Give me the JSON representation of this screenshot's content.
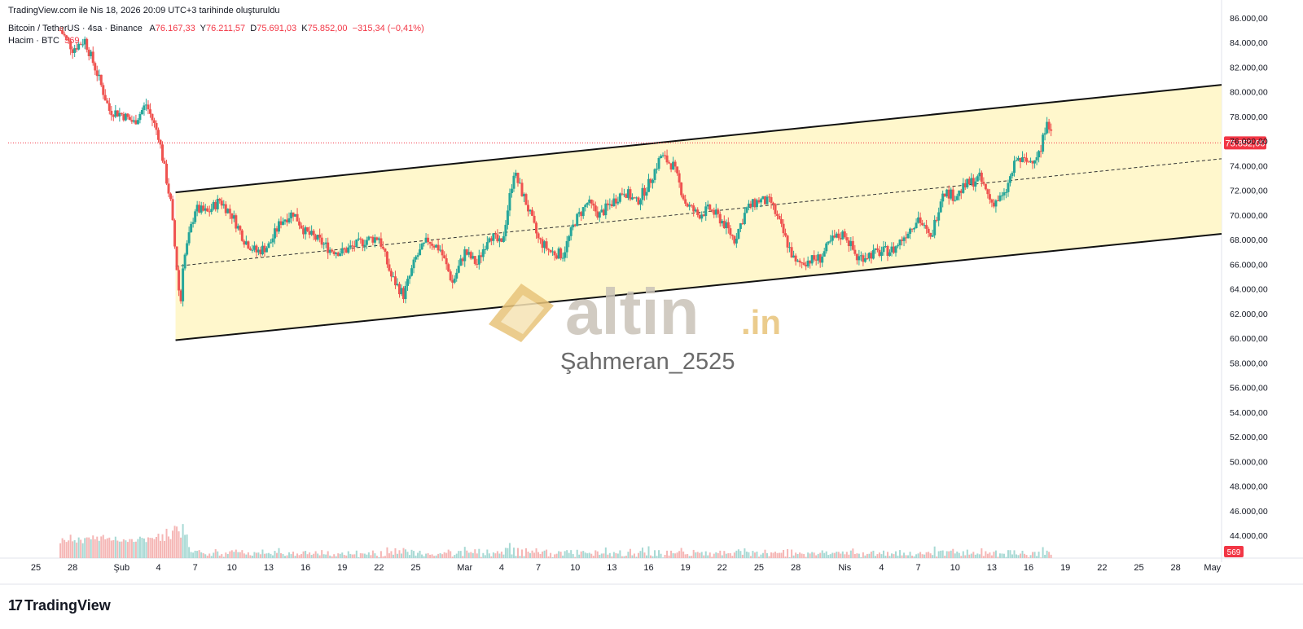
{
  "header": {
    "snapshot_text": "TradingView.com ile Nis 18, 2026 20:09 UTC+3 tarihinde oluşturuldu",
    "symbol": "Bitcoin / TetherUS · 4sa · Binance",
    "ohlc": {
      "open_label": "A",
      "open": "76.167,33",
      "high_label": "Y",
      "high": "76.211,57",
      "low_label": "D",
      "low": "75.691,03",
      "close_label": "K",
      "close": "75.852,00",
      "change": "−315,34 (−0,41%)"
    },
    "volume_label": "Hacim · BTC",
    "volume_value": "569"
  },
  "brand": {
    "name": "TradingView"
  },
  "watermark": {
    "logo_text": "altin",
    "logo_suffix": ".in",
    "author": "Şahmeran_2525"
  },
  "colors": {
    "up": "#26a69a",
    "down": "#ef5350",
    "channel_fill": "#fff7cc",
    "price_tag": "#f23645",
    "logo_gold": "#e8c47a",
    "logo_gray": "#c9c3b8"
  },
  "chart_data": {
    "type": "candlestick",
    "title": "",
    "x_ticks": [
      "25",
      "28",
      "Şub",
      "4",
      "7",
      "10",
      "13",
      "16",
      "19",
      "22",
      "25",
      "Mar",
      "4",
      "7",
      "10",
      "13",
      "16",
      "19",
      "22",
      "25",
      "28",
      "Nis",
      "4",
      "7",
      "10",
      "13",
      "16",
      "19",
      "22",
      "25",
      "28",
      "May"
    ],
    "y_ticks": [
      "44.000,00",
      "46.000,00",
      "48.000,00",
      "50.000,00",
      "52.000,00",
      "54.000,00",
      "56.000,00",
      "58.000,00",
      "60.000,00",
      "62.000,00",
      "64.000,00",
      "66.000,00",
      "68.000,00",
      "70.000,00",
      "72.000,00",
      "74.000,00",
      "76.000,00",
      "78.000,00",
      "80.000,00",
      "82.000,00",
      "84.000,00",
      "86.000,00"
    ],
    "ylim": [
      43000,
      86500
    ],
    "last_price": 75852,
    "last_price_label": "75.852,00",
    "volume_last_label": "569",
    "price_path": [
      {
        "x": "Jan 27",
        "y": 85000
      },
      {
        "x": "Jan 28",
        "y": 83500
      },
      {
        "x": "Jan 29",
        "y": 84200
      },
      {
        "x": "Jan 30",
        "y": 81500
      },
      {
        "x": "Jan 31",
        "y": 78500
      },
      {
        "x": "Feb 1",
        "y": 78200
      },
      {
        "x": "Feb 2",
        "y": 77500
      },
      {
        "x": "Feb 3",
        "y": 79000
      },
      {
        "x": "Feb 4",
        "y": 76500
      },
      {
        "x": "Feb 5",
        "y": 71000
      },
      {
        "x": "Feb 5.8",
        "y": 62500
      },
      {
        "x": "Feb 6",
        "y": 66000
      },
      {
        "x": "Feb 7",
        "y": 70500
      },
      {
        "x": "Feb 8",
        "y": 70200
      },
      {
        "x": "Feb 9",
        "y": 71200
      },
      {
        "x": "Feb 10",
        "y": 70000
      },
      {
        "x": "Feb 11",
        "y": 68000
      },
      {
        "x": "Feb 12",
        "y": 67000
      },
      {
        "x": "Feb 13",
        "y": 67500
      },
      {
        "x": "Feb 14",
        "y": 69500
      },
      {
        "x": "Feb 15",
        "y": 70200
      },
      {
        "x": "Feb 16",
        "y": 68600
      },
      {
        "x": "Feb 17",
        "y": 68000
      },
      {
        "x": "Feb 18",
        "y": 67200
      },
      {
        "x": "Feb 19",
        "y": 67000
      },
      {
        "x": "Feb 20",
        "y": 67500
      },
      {
        "x": "Feb 21",
        "y": 68000
      },
      {
        "x": "Feb 22",
        "y": 68200
      },
      {
        "x": "Feb 23",
        "y": 65000
      },
      {
        "x": "Feb 24",
        "y": 63500
      },
      {
        "x": "Feb 25",
        "y": 66500
      },
      {
        "x": "Feb 26",
        "y": 68000
      },
      {
        "x": "Feb 27",
        "y": 67200
      },
      {
        "x": "Feb 28",
        "y": 64500
      },
      {
        "x": "Mar 1",
        "y": 67000
      },
      {
        "x": "Mar 2",
        "y": 66000
      },
      {
        "x": "Mar 3",
        "y": 68500
      },
      {
        "x": "Mar 4",
        "y": 67500
      },
      {
        "x": "Mar 5",
        "y": 73500
      },
      {
        "x": "Mar 6",
        "y": 71000
      },
      {
        "x": "Mar 7",
        "y": 68000
      },
      {
        "x": "Mar 8",
        "y": 67000
      },
      {
        "x": "Mar 9",
        "y": 66800
      },
      {
        "x": "Mar 10",
        "y": 69500
      },
      {
        "x": "Mar 11",
        "y": 71000
      },
      {
        "x": "Mar 12",
        "y": 70000
      },
      {
        "x": "Mar 13",
        "y": 71000
      },
      {
        "x": "Mar 14",
        "y": 72000
      },
      {
        "x": "Mar 15",
        "y": 71000
      },
      {
        "x": "Mar 16",
        "y": 72500
      },
      {
        "x": "Mar 17",
        "y": 74800
      },
      {
        "x": "Mar 18",
        "y": 74000
      },
      {
        "x": "Mar 19",
        "y": 71000
      },
      {
        "x": "Mar 20",
        "y": 70000
      },
      {
        "x": "Mar 21",
        "y": 70500
      },
      {
        "x": "Mar 22",
        "y": 69500
      },
      {
        "x": "Mar 23",
        "y": 68000
      },
      {
        "x": "Mar 24",
        "y": 70500
      },
      {
        "x": "Mar 25",
        "y": 71200
      },
      {
        "x": "Mar 26",
        "y": 71000
      },
      {
        "x": "Mar 27",
        "y": 68500
      },
      {
        "x": "Mar 28",
        "y": 66000
      },
      {
        "x": "Mar 29",
        "y": 66300
      },
      {
        "x": "Mar 30",
        "y": 66500
      },
      {
        "x": "Mar 31",
        "y": 68000
      },
      {
        "x": "Apr 1",
        "y": 68500
      },
      {
        "x": "Apr 2",
        "y": 66500
      },
      {
        "x": "Apr 3",
        "y": 66800
      },
      {
        "x": "Apr 4",
        "y": 67000
      },
      {
        "x": "Apr 5",
        "y": 67200
      },
      {
        "x": "Apr 6",
        "y": 68500
      },
      {
        "x": "Apr 7",
        "y": 69800
      },
      {
        "x": "Apr 8",
        "y": 68000
      },
      {
        "x": "Apr 9",
        "y": 72000
      },
      {
        "x": "Apr 10",
        "y": 71500
      },
      {
        "x": "Apr 11",
        "y": 72500
      },
      {
        "x": "Apr 12",
        "y": 73000
      },
      {
        "x": "Apr 13",
        "y": 71000
      },
      {
        "x": "Apr 14",
        "y": 71500
      },
      {
        "x": "Apr 15",
        "y": 74500
      },
      {
        "x": "Apr 16",
        "y": 74300
      },
      {
        "x": "Apr 17",
        "y": 75200
      },
      {
        "x": "Apr 17.5",
        "y": 78000
      },
      {
        "x": "Apr 18",
        "y": 75852
      }
    ],
    "channel": {
      "lower": [
        {
          "x": "Feb 5",
          "y": 59800
        },
        {
          "x": "May 5",
          "y": 68800
        }
      ],
      "upper": [
        {
          "x": "Feb 5",
          "y": 71800
        },
        {
          "x": "May 5",
          "y": 80900
        }
      ],
      "mid": [
        {
          "x": "Feb 5",
          "y": 65800
        },
        {
          "x": "May 5",
          "y": 74900
        }
      ]
    }
  }
}
